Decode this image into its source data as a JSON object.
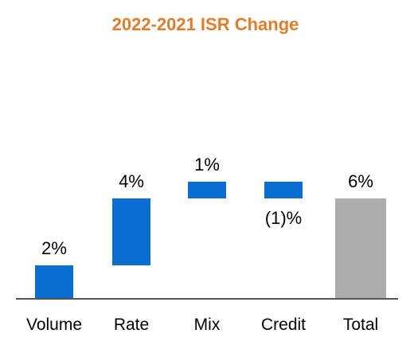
{
  "chart_data": {
    "type": "bar",
    "subtype": "waterfall",
    "title": "2022-2021 ISR Change",
    "categories": [
      "Volume",
      "Rate",
      "Mix",
      "Credit",
      "Total"
    ],
    "values": [
      2,
      4,
      1,
      -1,
      6
    ],
    "value_labels": [
      "2%",
      "4%",
      "1%",
      "(1)%",
      "6%"
    ],
    "cumulative": [
      2,
      6,
      7,
      6,
      6
    ],
    "is_total": [
      false,
      false,
      false,
      false,
      true
    ],
    "xlabel": "",
    "ylabel": "",
    "ylim": [
      0,
      8
    ],
    "grid": false,
    "legend": "none"
  },
  "colors": {
    "title": "#E07C2C",
    "step_bar": "#0A6ED1",
    "total_bar": "#ADADAD",
    "axis": "#555555"
  }
}
